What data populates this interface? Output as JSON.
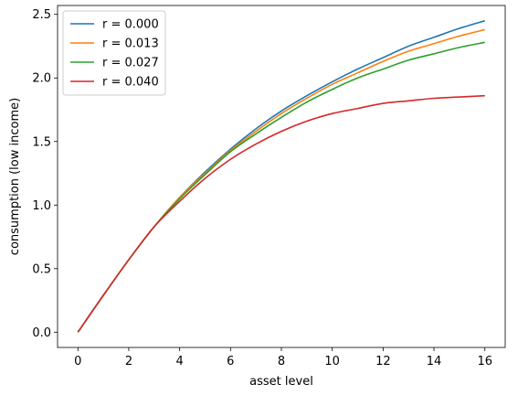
{
  "chart_data": {
    "type": "line",
    "title": "",
    "xlabel": "asset level",
    "ylabel": "consumption (low income)",
    "xlim": [
      -0.8,
      16.8
    ],
    "ylim": [
      -0.12,
      2.57
    ],
    "xticks": [
      0,
      2,
      4,
      6,
      8,
      10,
      12,
      14,
      16
    ],
    "yticks": [
      0.0,
      0.5,
      1.0,
      1.5,
      2.0,
      2.5
    ],
    "xtick_labels": [
      "0",
      "2",
      "4",
      "6",
      "8",
      "10",
      "12",
      "14",
      "16"
    ],
    "ytick_labels": [
      "0.0",
      "0.5",
      "1.0",
      "1.5",
      "2.0",
      "2.5"
    ],
    "grid": false,
    "legend_position": "top-left",
    "x": [
      0,
      1,
      2,
      3,
      4,
      5,
      6,
      7,
      8,
      9,
      10,
      11,
      12,
      13,
      14,
      15,
      16
    ],
    "series": [
      {
        "name": "r = 0.000",
        "legend_label": "r = 0.000",
        "color": "#1f77b4",
        "values": [
          0.0,
          0.29,
          0.57,
          0.83,
          1.06,
          1.26,
          1.44,
          1.6,
          1.74,
          1.86,
          1.97,
          2.07,
          2.16,
          2.25,
          2.32,
          2.39,
          2.45
        ]
      },
      {
        "name": "r = 0.013",
        "legend_label": "r = 0.013",
        "color": "#ff7f0e",
        "values": [
          0.0,
          0.29,
          0.57,
          0.83,
          1.06,
          1.25,
          1.43,
          1.58,
          1.72,
          1.84,
          1.95,
          2.04,
          2.13,
          2.21,
          2.27,
          2.33,
          2.38
        ]
      },
      {
        "name": "r = 0.027",
        "legend_label": "r = 0.027",
        "color": "#2ca02c",
        "values": [
          0.0,
          0.29,
          0.57,
          0.83,
          1.05,
          1.24,
          1.42,
          1.56,
          1.69,
          1.81,
          1.91,
          2.0,
          2.07,
          2.14,
          2.19,
          2.24,
          2.28
        ]
      },
      {
        "name": "r = 0.040",
        "legend_label": "r = 0.040",
        "color": "#d62728",
        "values": [
          0.0,
          0.29,
          0.57,
          0.83,
          1.03,
          1.21,
          1.36,
          1.48,
          1.58,
          1.66,
          1.72,
          1.76,
          1.8,
          1.82,
          1.84,
          1.85,
          1.86
        ]
      }
    ]
  }
}
